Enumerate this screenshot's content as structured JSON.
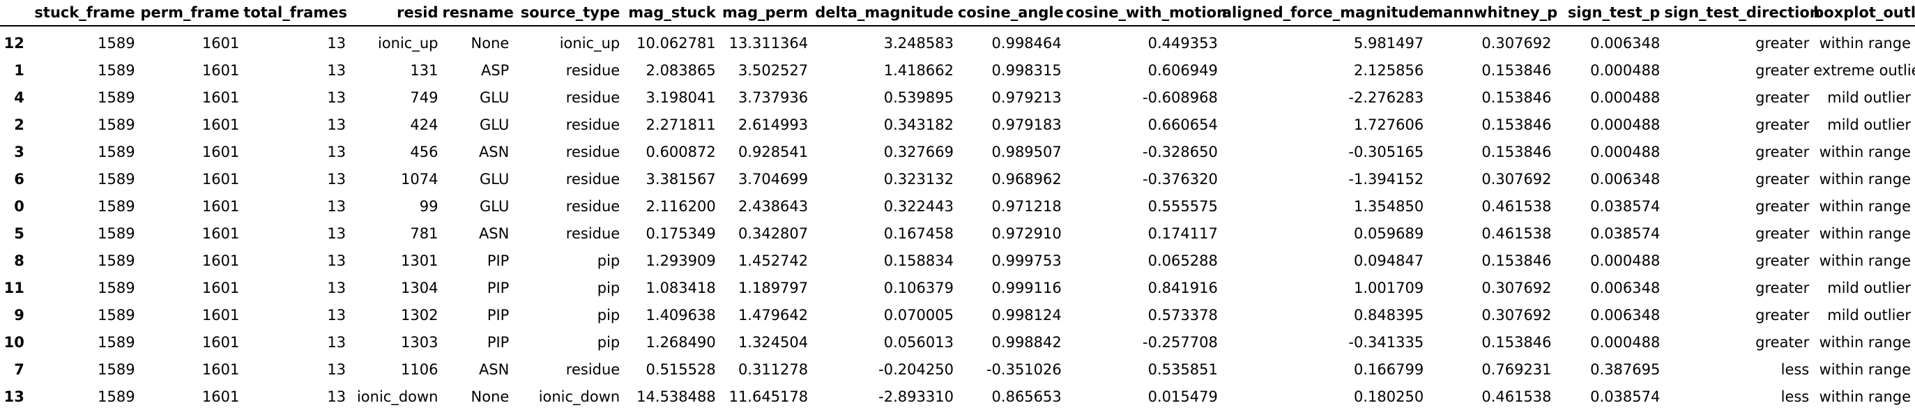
{
  "columns": [
    "",
    "stuck_frame",
    "perm_frame",
    "total_frames",
    "resid",
    "resname",
    "source_type",
    "mag_stuck",
    "mag_perm",
    "delta_magnitude",
    "cosine_angle",
    "cosine_with_motion",
    "aligned_force_magnitude",
    "mannwhitney_p",
    "sign_test_p",
    "sign_test_direction",
    "boxplot_outlier"
  ],
  "rows": [
    [
      "12",
      "1589",
      "1601",
      "13",
      "ionic_up",
      "None",
      "ionic_up",
      "10.062781",
      "13.311364",
      "3.248583",
      "0.998464",
      "0.449353",
      "5.981497",
      "0.307692",
      "0.006348",
      "greater",
      "within range"
    ],
    [
      "1",
      "1589",
      "1601",
      "13",
      "131",
      "ASP",
      "residue",
      "2.083865",
      "3.502527",
      "1.418662",
      "0.998315",
      "0.606949",
      "2.125856",
      "0.153846",
      "0.000488",
      "greater",
      "extreme outlier"
    ],
    [
      "4",
      "1589",
      "1601",
      "13",
      "749",
      "GLU",
      "residue",
      "3.198041",
      "3.737936",
      "0.539895",
      "0.979213",
      "-0.608968",
      "-2.276283",
      "0.153846",
      "0.000488",
      "greater",
      "mild outlier"
    ],
    [
      "2",
      "1589",
      "1601",
      "13",
      "424",
      "GLU",
      "residue",
      "2.271811",
      "2.614993",
      "0.343182",
      "0.979183",
      "0.660654",
      "1.727606",
      "0.153846",
      "0.000488",
      "greater",
      "mild outlier"
    ],
    [
      "3",
      "1589",
      "1601",
      "13",
      "456",
      "ASN",
      "residue",
      "0.600872",
      "0.928541",
      "0.327669",
      "0.989507",
      "-0.328650",
      "-0.305165",
      "0.153846",
      "0.000488",
      "greater",
      "within range"
    ],
    [
      "6",
      "1589",
      "1601",
      "13",
      "1074",
      "GLU",
      "residue",
      "3.381567",
      "3.704699",
      "0.323132",
      "0.968962",
      "-0.376320",
      "-1.394152",
      "0.307692",
      "0.006348",
      "greater",
      "within range"
    ],
    [
      "0",
      "1589",
      "1601",
      "13",
      "99",
      "GLU",
      "residue",
      "2.116200",
      "2.438643",
      "0.322443",
      "0.971218",
      "0.555575",
      "1.354850",
      "0.461538",
      "0.038574",
      "greater",
      "within range"
    ],
    [
      "5",
      "1589",
      "1601",
      "13",
      "781",
      "ASN",
      "residue",
      "0.175349",
      "0.342807",
      "0.167458",
      "0.972910",
      "0.174117",
      "0.059689",
      "0.461538",
      "0.038574",
      "greater",
      "within range"
    ],
    [
      "8",
      "1589",
      "1601",
      "13",
      "1301",
      "PIP",
      "pip",
      "1.293909",
      "1.452742",
      "0.158834",
      "0.999753",
      "0.065288",
      "0.094847",
      "0.153846",
      "0.000488",
      "greater",
      "within range"
    ],
    [
      "11",
      "1589",
      "1601",
      "13",
      "1304",
      "PIP",
      "pip",
      "1.083418",
      "1.189797",
      "0.106379",
      "0.999116",
      "0.841916",
      "1.001709",
      "0.307692",
      "0.006348",
      "greater",
      "mild outlier"
    ],
    [
      "9",
      "1589",
      "1601",
      "13",
      "1302",
      "PIP",
      "pip",
      "1.409638",
      "1.479642",
      "0.070005",
      "0.998124",
      "0.573378",
      "0.848395",
      "0.307692",
      "0.006348",
      "greater",
      "mild outlier"
    ],
    [
      "10",
      "1589",
      "1601",
      "13",
      "1303",
      "PIP",
      "pip",
      "1.268490",
      "1.324504",
      "0.056013",
      "0.998842",
      "-0.257708",
      "-0.341335",
      "0.153846",
      "0.000488",
      "greater",
      "within range"
    ],
    [
      "7",
      "1589",
      "1601",
      "13",
      "1106",
      "ASN",
      "residue",
      "0.515528",
      "0.311278",
      "-0.204250",
      "-0.351026",
      "0.535851",
      "0.166799",
      "0.769231",
      "0.387695",
      "less",
      "within range"
    ],
    [
      "13",
      "1589",
      "1601",
      "13",
      "ionic_down",
      "None",
      "ionic_down",
      "14.538488",
      "11.645178",
      "-2.893310",
      "0.865653",
      "0.015479",
      "0.180250",
      "0.461538",
      "0.038574",
      "less",
      "within range"
    ]
  ]
}
